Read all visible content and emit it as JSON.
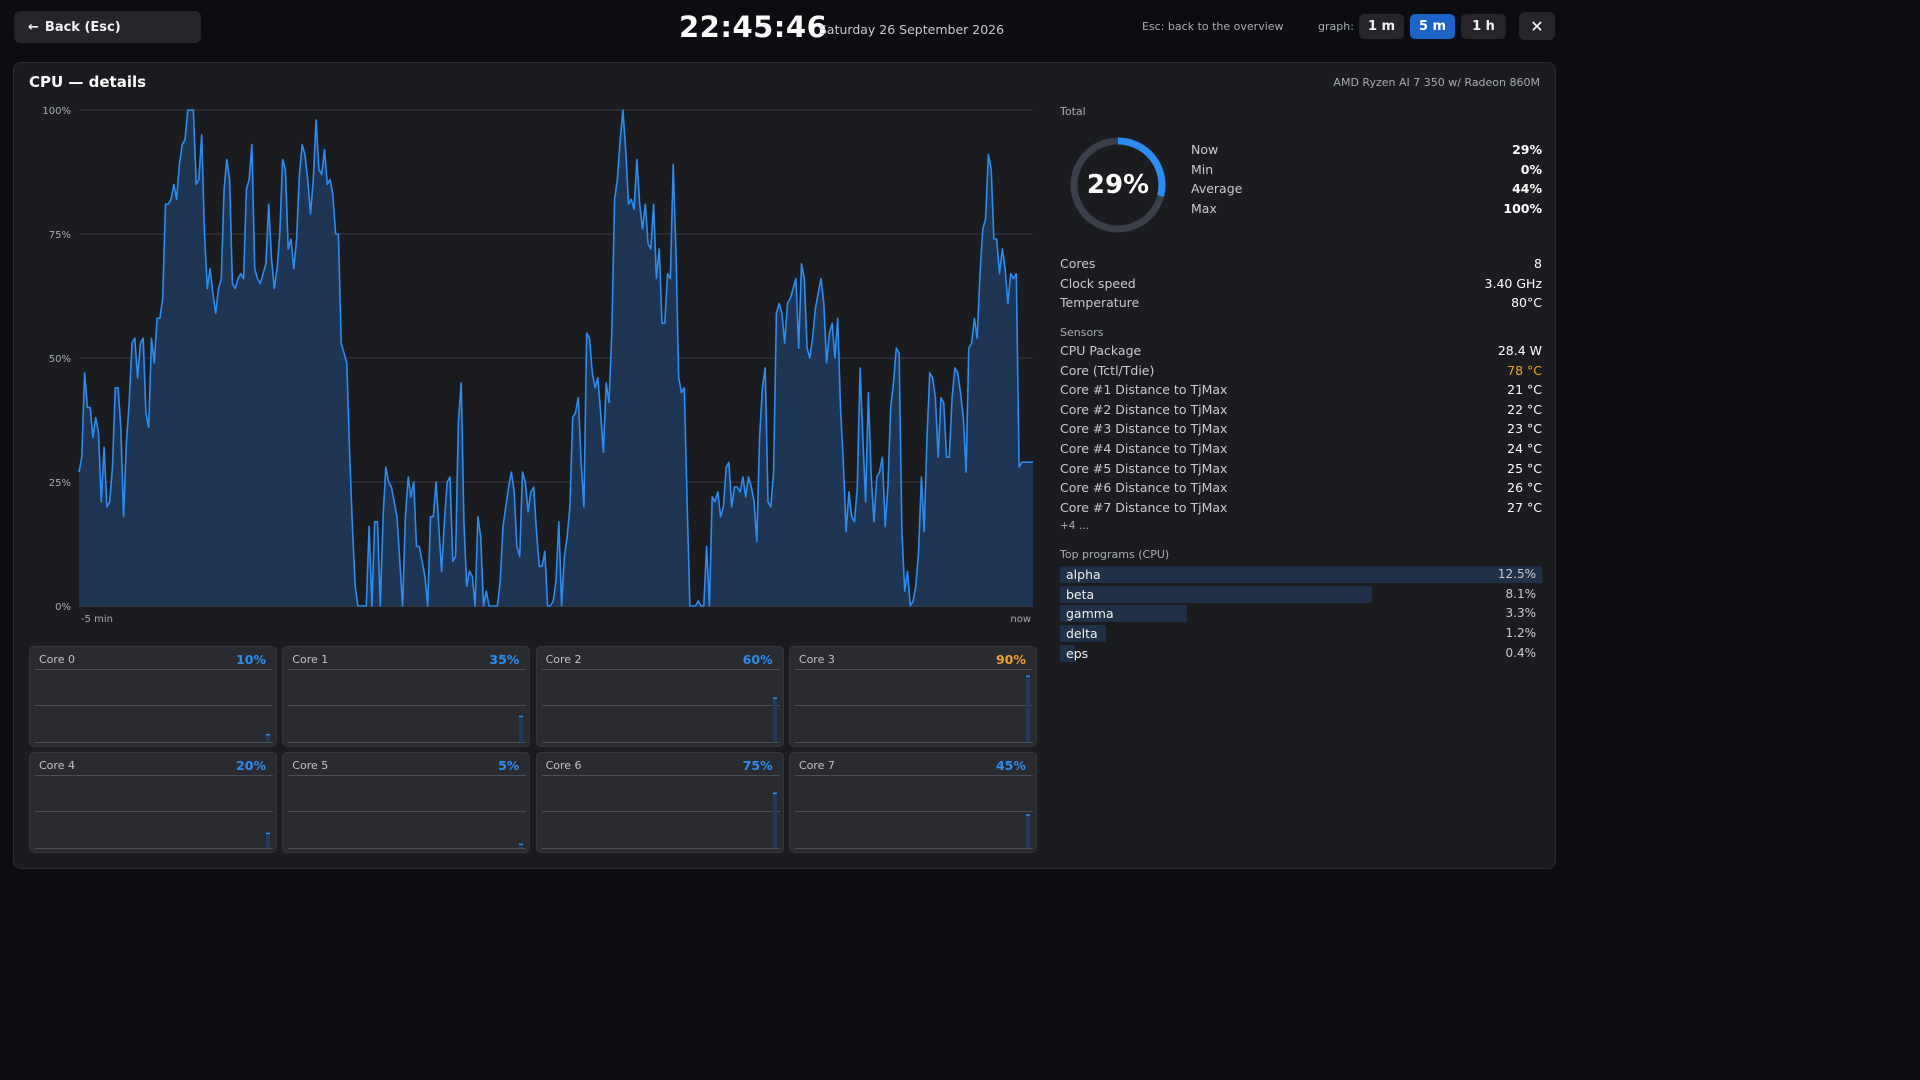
{
  "header": {
    "back_label": "Back (Esc)",
    "time": "22:45:46",
    "date": "Saturday 26 September 2026",
    "hint": "Esc: back to the overview",
    "graph_label": "graph:",
    "ranges": [
      "1 m",
      "5 m",
      "1 h"
    ],
    "active_range": "5 m",
    "close_glyph": "✕"
  },
  "panel": {
    "title": "CPU — details",
    "cpu_model": "AMD Ryzen AI 7 350 w/ Radeon 860M"
  },
  "colors": {
    "accent": "#2d8cf0",
    "warn": "#f0a22d",
    "fill": "#1f3a5e"
  },
  "chart_data": {
    "type": "area",
    "y_ticks": [
      "0%",
      "25%",
      "50%",
      "75%",
      "100%"
    ],
    "ylim": [
      0,
      100
    ],
    "x_start_label": "-5 min",
    "x_end_label": "now",
    "grid": true,
    "values": [
      27,
      30,
      47,
      40,
      40,
      34,
      38,
      35,
      21,
      32,
      20,
      21,
      28,
      44,
      44,
      36,
      18,
      33,
      41,
      53,
      54,
      46,
      53,
      54,
      39,
      36,
      54,
      49,
      58,
      58,
      62,
      81,
      81,
      82,
      85,
      82,
      89,
      93,
      94,
      100,
      100,
      100,
      85,
      86,
      95,
      75,
      64,
      68,
      63,
      59,
      64,
      66,
      84,
      90,
      86,
      65,
      64,
      66,
      67,
      66,
      84,
      86,
      93,
      68,
      66,
      65,
      67,
      69,
      81,
      70,
      64,
      68,
      75,
      90,
      88,
      72,
      74,
      68,
      74,
      87,
      93,
      91,
      86,
      79,
      86,
      98,
      88,
      87,
      92,
      85,
      86,
      83,
      75,
      75,
      53,
      51,
      49,
      31,
      16,
      4,
      0,
      0,
      0,
      0,
      16,
      0,
      17,
      17,
      0,
      18,
      28,
      25,
      24,
      21,
      18,
      9,
      0,
      18,
      26,
      22,
      25,
      12,
      12,
      9,
      6,
      0,
      18,
      18,
      25,
      16,
      7,
      17,
      25,
      26,
      9,
      10,
      37,
      45,
      17,
      4,
      7,
      6,
      0,
      18,
      14,
      0,
      3,
      0,
      0,
      0,
      0,
      5,
      16,
      20,
      24,
      27,
      23,
      12,
      10,
      27,
      25,
      19,
      23,
      24,
      15,
      8,
      8,
      11,
      0,
      0,
      1,
      5,
      17,
      0,
      10,
      14,
      20,
      38,
      39,
      42,
      29,
      20,
      55,
      54,
      47,
      44,
      46,
      39,
      31,
      45,
      41,
      55,
      82,
      86,
      94,
      100,
      92,
      81,
      82,
      80,
      90,
      81,
      76,
      81,
      73,
      72,
      81,
      66,
      72,
      57,
      57,
      67,
      66,
      89,
      72,
      46,
      43,
      44,
      21,
      0,
      0,
      0,
      1,
      0,
      0,
      12,
      0,
      22,
      21,
      23,
      18,
      20,
      28,
      29,
      20,
      24,
      24,
      23,
      26,
      22,
      26,
      24,
      21,
      13,
      34,
      44,
      48,
      21,
      20,
      27,
      59,
      61,
      59,
      53,
      61,
      62,
      64,
      66,
      52,
      69,
      66,
      52,
      50,
      54,
      60,
      63,
      66,
      61,
      49,
      55,
      57,
      50,
      58,
      40,
      29,
      15,
      23,
      18,
      17,
      24,
      48,
      34,
      21,
      43,
      26,
      17,
      26,
      27,
      30,
      16,
      24,
      40,
      45,
      52,
      51,
      15,
      3,
      7,
      0,
      1,
      4,
      11,
      26,
      15,
      34,
      47,
      46,
      42,
      30,
      42,
      41,
      30,
      30,
      42,
      48,
      47,
      43,
      38,
      27,
      52,
      53,
      58,
      54,
      67,
      76,
      78,
      91,
      88,
      74,
      74,
      67,
      72,
      68,
      61,
      67,
      66,
      67,
      28,
      29,
      29,
      29,
      29,
      29
    ],
    "cores": [
      {
        "name": "Core 0",
        "value": 10,
        "label": "10%"
      },
      {
        "name": "Core 1",
        "value": 35,
        "label": "35%"
      },
      {
        "name": "Core 2",
        "value": 60,
        "label": "60%"
      },
      {
        "name": "Core 3",
        "value": 90,
        "label": "90%"
      },
      {
        "name": "Core 4",
        "value": 20,
        "label": "20%"
      },
      {
        "name": "Core 5",
        "value": 5,
        "label": "5%"
      },
      {
        "name": "Core 6",
        "value": 75,
        "label": "75%"
      },
      {
        "name": "Core 7",
        "value": 45,
        "label": "45%"
      }
    ]
  },
  "total": {
    "label": "Total",
    "value": 29,
    "display": "29%",
    "stats": [
      {
        "label": "Now",
        "value": "29%"
      },
      {
        "label": "Min",
        "value": "0%"
      },
      {
        "label": "Average",
        "value": "44%"
      },
      {
        "label": "Max",
        "value": "100%"
      }
    ]
  },
  "info": [
    {
      "label": "Cores",
      "value": "8"
    },
    {
      "label": "Clock speed",
      "value": "3.40 GHz"
    },
    {
      "label": "Temperature",
      "value": "80°C"
    }
  ],
  "sensors": {
    "label": "Sensors",
    "items": [
      {
        "label": "CPU Package",
        "value": "28.4 W",
        "warn": false
      },
      {
        "label": "Core (Tctl/Tdie)",
        "value": "78 °C",
        "warn": true
      },
      {
        "label": "Core #1 Distance to TjMax",
        "value": "21 °C",
        "warn": false
      },
      {
        "label": "Core #2 Distance to TjMax",
        "value": "22 °C",
        "warn": false
      },
      {
        "label": "Core #3 Distance to TjMax",
        "value": "23 °C",
        "warn": false
      },
      {
        "label": "Core #4 Distance to TjMax",
        "value": "24 °C",
        "warn": false
      },
      {
        "label": "Core #5 Distance to TjMax",
        "value": "25 °C",
        "warn": false
      },
      {
        "label": "Core #6 Distance to TjMax",
        "value": "26 °C",
        "warn": false
      },
      {
        "label": "Core #7 Distance to TjMax",
        "value": "27 °C",
        "warn": false
      }
    ],
    "more": "+4 ..."
  },
  "programs": {
    "label": "Top programs (CPU)",
    "items": [
      {
        "name": "alpha",
        "value": "12.5%",
        "share": 12.5
      },
      {
        "name": "beta",
        "value": "8.1%",
        "share": 8.1
      },
      {
        "name": "gamma",
        "value": "3.3%",
        "share": 3.3
      },
      {
        "name": "delta",
        "value": "1.2%",
        "share": 1.2
      },
      {
        "name": "eps",
        "value": "0.4%",
        "share": 0.4
      }
    ]
  }
}
